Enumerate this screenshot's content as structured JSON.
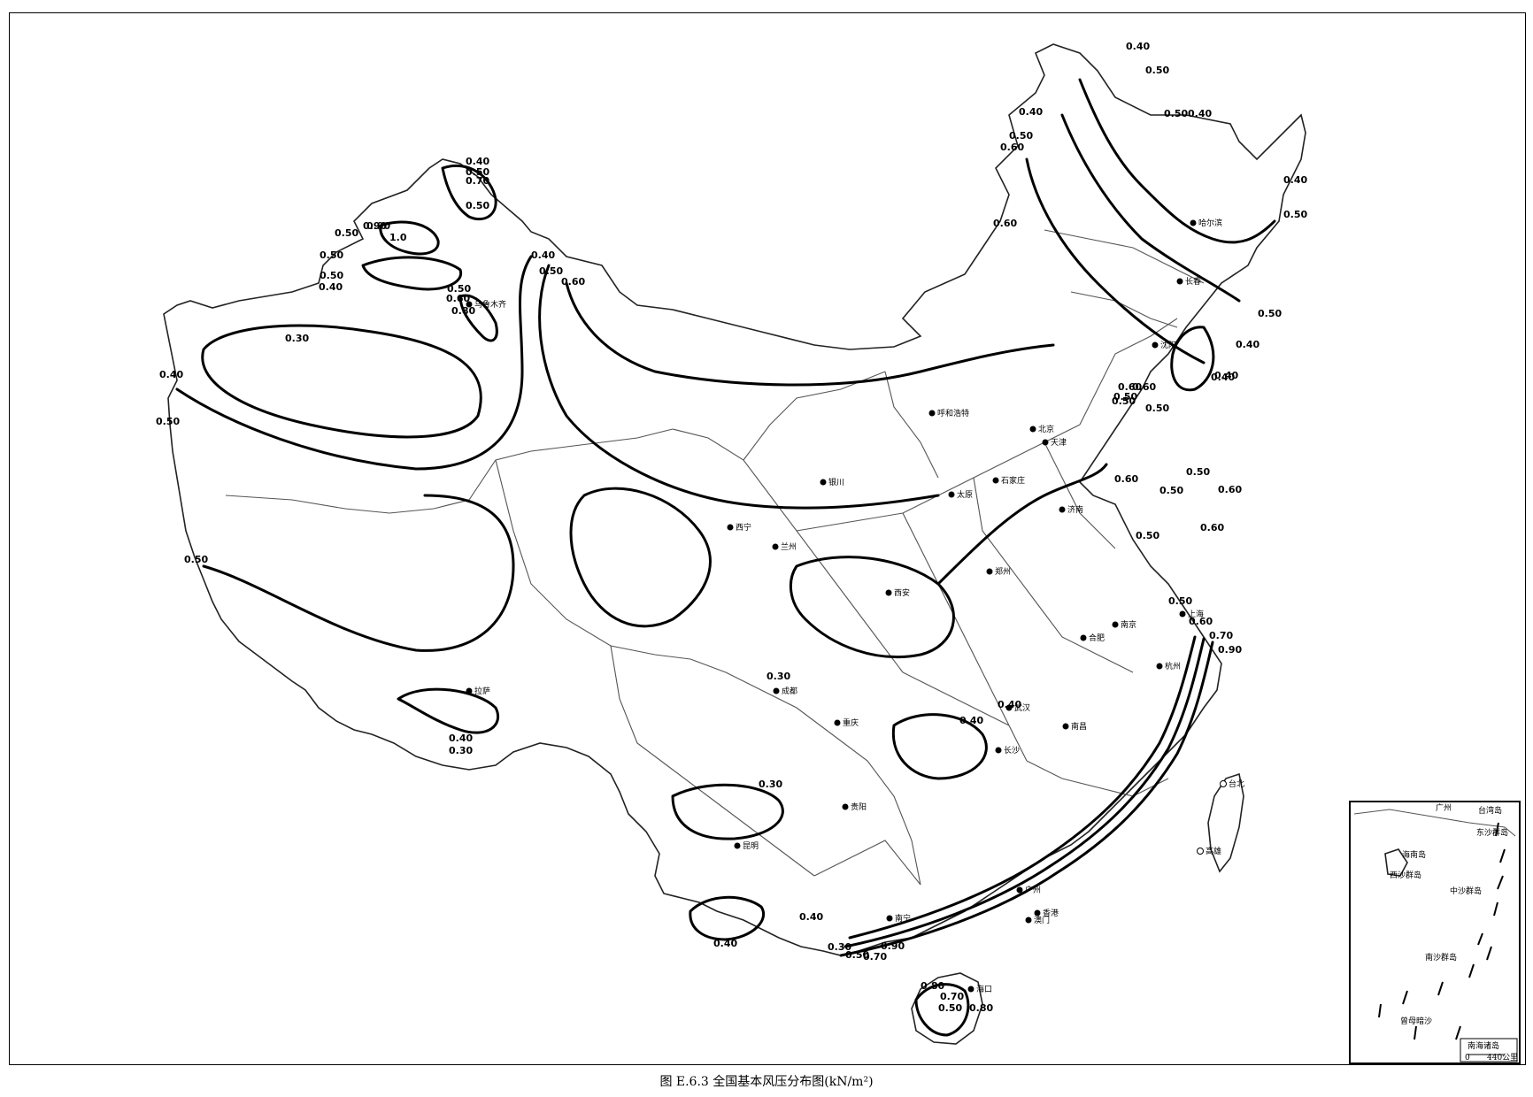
{
  "caption": "图 E.6.3   全国基本风压分布图(kN/m²)",
  "cities": [
    {
      "name": "哈尔滨"
    },
    {
      "name": "长春"
    },
    {
      "name": "沈阳"
    },
    {
      "name": "北京"
    },
    {
      "name": "天津"
    },
    {
      "name": "呼和浩特"
    },
    {
      "name": "石家庄"
    },
    {
      "name": "太原"
    },
    {
      "name": "济南"
    },
    {
      "name": "银川"
    },
    {
      "name": "西宁"
    },
    {
      "name": "兰州"
    },
    {
      "name": "西安"
    },
    {
      "name": "郑州"
    },
    {
      "name": "南京"
    },
    {
      "name": "上海"
    },
    {
      "name": "合肥"
    },
    {
      "name": "杭州"
    },
    {
      "name": "武汉"
    },
    {
      "name": "南昌"
    },
    {
      "name": "长沙"
    },
    {
      "name": "成都"
    },
    {
      "name": "重庆"
    },
    {
      "name": "贵阳"
    },
    {
      "name": "昆明"
    },
    {
      "name": "拉萨"
    },
    {
      "name": "南宁"
    },
    {
      "name": "广州"
    },
    {
      "name": "香港"
    },
    {
      "name": "澳门"
    },
    {
      "name": "海口"
    },
    {
      "name": "乌鲁木齐"
    },
    {
      "name": "台北"
    },
    {
      "name": "高雄"
    }
  ],
  "contour_labels": [
    "0.40",
    "0.50",
    "0.50",
    "0.40",
    "0.40",
    "0.50",
    "0.60",
    "0.60",
    "0.40",
    "0.50",
    "0.50",
    "0.40",
    "0.40",
    "0.40",
    "0.50",
    "0.60",
    "0.60",
    "0.50",
    "0.50",
    "0.50",
    "0.60",
    "0.50",
    "0.60",
    "0.60",
    "0.50",
    "0.50",
    "0.60",
    "0.70",
    "0.90",
    "0.40",
    "0.50",
    "0.70",
    "0.50",
    "0.90",
    "0.90",
    "0.50",
    "1.0",
    "0.50",
    "0.50",
    "0.40",
    "0.50",
    "0.60",
    "0.80",
    "0.40",
    "0.50",
    "0.60",
    "0.30",
    "0.40",
    "0.50",
    "0.50",
    "0.40",
    "0.30",
    "0.30",
    "0.30",
    "0.40",
    "0.40",
    "0.40",
    "0.40",
    "0.30",
    "0.50",
    "0.70",
    "0.90",
    "0.80",
    "0.70",
    "0.50",
    "0.80"
  ],
  "inset": {
    "places": [
      "广州",
      "台湾岛",
      "东沙群岛",
      "海南岛",
      "西沙群岛",
      "中沙群岛",
      "南沙群岛",
      "曾母暗沙"
    ],
    "title": "南海诸岛",
    "scale_zero": "0",
    "scale_label": "440公里"
  }
}
